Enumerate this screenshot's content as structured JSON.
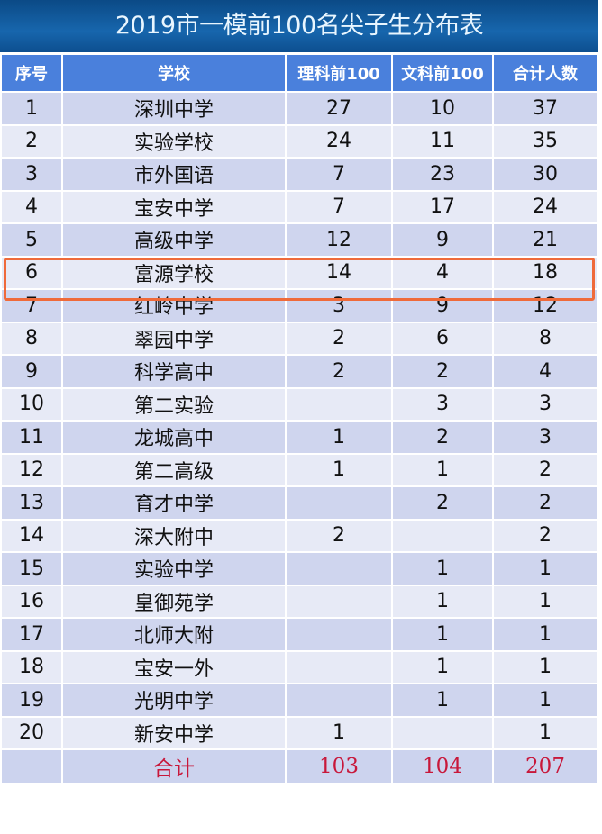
{
  "title": "2019市一模前100名尖子生分布表",
  "headers": [
    "序号",
    "学校",
    "理科前100",
    "文科前100",
    "合计人数"
  ],
  "rows": [
    [
      "1",
      "深圳中学",
      "27",
      "10",
      "37"
    ],
    [
      "2",
      "实验学校",
      "24",
      "11",
      "35"
    ],
    [
      "3",
      "市外国语",
      "7",
      "23",
      "30"
    ],
    [
      "4",
      "宝安中学",
      "7",
      "17",
      "24"
    ],
    [
      "5",
      "高级中学",
      "12",
      "9",
      "21"
    ],
    [
      "6",
      "富源学校",
      "14",
      "4",
      "18"
    ],
    [
      "7",
      "红岭中学",
      "3",
      "9",
      "12"
    ],
    [
      "8",
      "翠园中学",
      "2",
      "6",
      "8"
    ],
    [
      "9",
      "科学高中",
      "2",
      "2",
      "4"
    ],
    [
      "10",
      "第二实验",
      "",
      "3",
      "3"
    ],
    [
      "11",
      "龙城高中",
      "1",
      "2",
      "3"
    ],
    [
      "12",
      "第二高级",
      "1",
      "1",
      "2"
    ],
    [
      "13",
      "育才中学",
      "",
      "2",
      "2"
    ],
    [
      "14",
      "深大附中",
      "2",
      "",
      "2"
    ],
    [
      "15",
      "实验中学",
      "",
      "1",
      "1"
    ],
    [
      "16",
      "皇御苑学",
      "",
      "1",
      "1"
    ],
    [
      "17",
      "北师大附",
      "",
      "1",
      "1"
    ],
    [
      "18",
      "宝安一外",
      "",
      "1",
      "1"
    ],
    [
      "19",
      "光明中学",
      "",
      "1",
      "1"
    ],
    [
      "20",
      "新安中学",
      "1",
      "",
      "1"
    ]
  ],
  "total": [
    "",
    "合计",
    "103",
    "104",
    "207"
  ],
  "highlighted_row": 6,
  "colors": {
    "header": "#4a80dc",
    "title_bg": "#1766ad",
    "highlight": "#ef6a3a",
    "total_text": "#c8173a"
  }
}
